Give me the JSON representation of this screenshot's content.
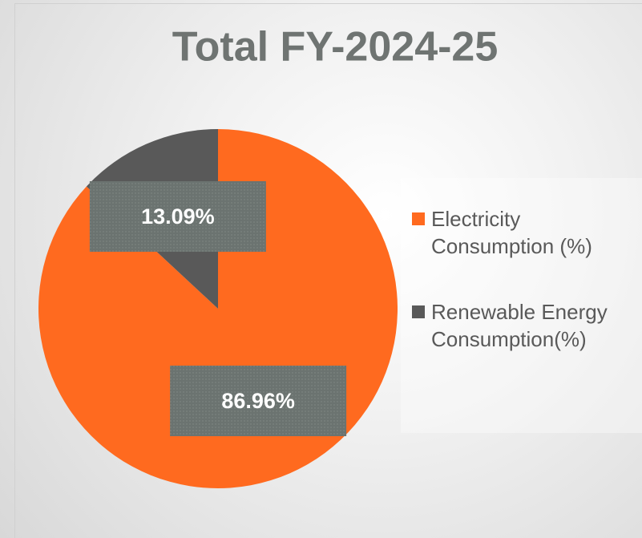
{
  "chart_data": {
    "type": "pie",
    "title": "Total FY-2024-25",
    "categories": [
      "Electricity Consumption (%)",
      "Renewable Energy Consumption(%)"
    ],
    "values": [
      86.96,
      13.09
    ],
    "value_labels": [
      "86.96%",
      "13.09%"
    ],
    "colors": [
      "#ff6a1f",
      "#595959"
    ],
    "legend": "right"
  }
}
